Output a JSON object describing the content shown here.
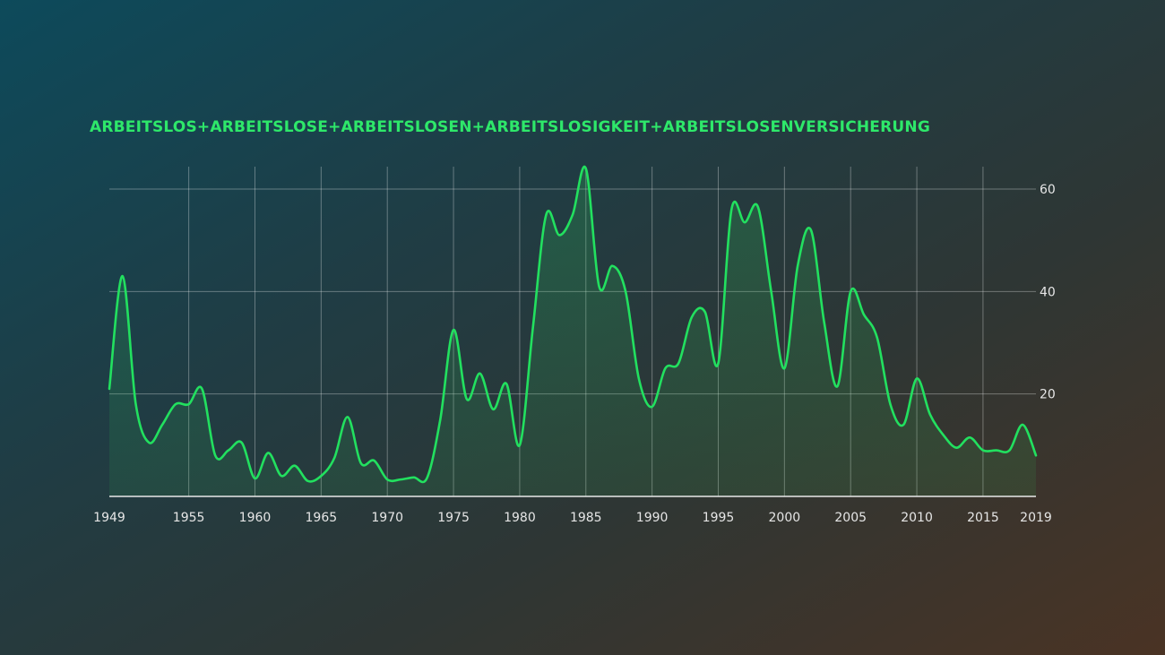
{
  "chart_data": {
    "type": "area",
    "title": "ARBEITSLOS+ARBEITSLOSE+ARBEITSLOSEN+ARBEITSLOSIGKEIT+ARBEITSLOSENVERSICHERUNG",
    "xlabel": "",
    "ylabel": "",
    "xlim": [
      1949,
      2019
    ],
    "ylim": [
      0,
      65
    ],
    "x_ticks": [
      1949,
      1955,
      1960,
      1965,
      1970,
      1975,
      1980,
      1985,
      1990,
      1995,
      2000,
      2005,
      2010,
      2015,
      2019
    ],
    "y_ticks": [
      20,
      40,
      60
    ],
    "y_axis_position": "right",
    "grid": true,
    "line_color": "#22e05f",
    "title_color": "#2ee86a",
    "x": [
      1949,
      1950,
      1951,
      1952,
      1953,
      1954,
      1955,
      1956,
      1957,
      1958,
      1959,
      1960,
      1961,
      1962,
      1963,
      1964,
      1965,
      1966,
      1967,
      1968,
      1969,
      1970,
      1971,
      1972,
      1973,
      1974,
      1975,
      1976,
      1977,
      1978,
      1979,
      1980,
      1981,
      1982,
      1983,
      1984,
      1985,
      1986,
      1987,
      1988,
      1989,
      1990,
      1991,
      1992,
      1993,
      1994,
      1995,
      1996,
      1997,
      1998,
      1999,
      2000,
      2001,
      2002,
      2003,
      2004,
      2005,
      2006,
      2007,
      2008,
      2009,
      2010,
      2011,
      2012,
      2013,
      2014,
      2015,
      2016,
      2017,
      2018,
      2019
    ],
    "values": [
      21,
      43,
      18,
      10.5,
      14,
      18,
      18,
      21,
      8,
      9,
      10.5,
      3.5,
      8.5,
      4,
      6,
      3,
      4,
      7.5,
      15.5,
      6.5,
      7,
      3.3,
      3.3,
      3.7,
      3.6,
      15,
      32.5,
      19,
      24,
      17,
      22,
      10,
      33,
      55,
      51,
      55,
      64,
      41,
      45,
      40,
      23,
      17.5,
      25,
      26,
      35,
      36,
      26,
      56,
      53.5,
      56.5,
      40,
      25,
      45,
      52,
      34,
      21.5,
      40,
      35.5,
      31,
      18,
      14,
      23,
      16,
      12,
      9.5,
      11.5,
      9,
      9,
      9,
      14,
      8
    ]
  }
}
